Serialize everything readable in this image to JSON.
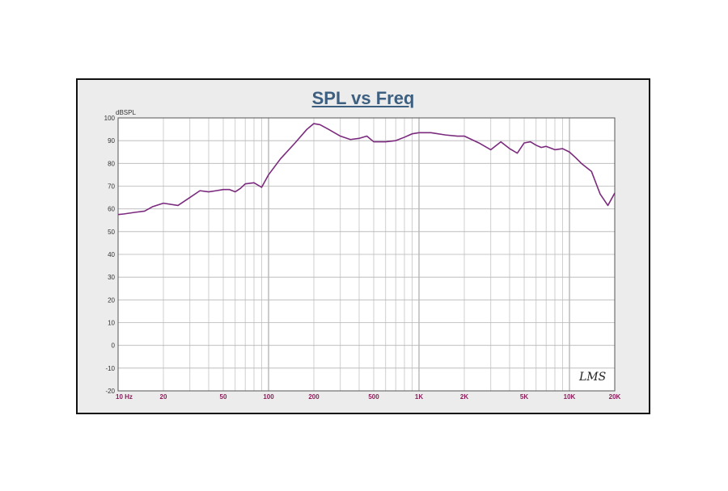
{
  "chart_data": {
    "type": "line",
    "title": "SPL vs Freq",
    "ylabel": "dBSPL",
    "xlabel": "",
    "x_scale": "log",
    "xlim": [
      10,
      20000
    ],
    "ylim": [
      -20,
      100
    ],
    "y_ticks": [
      100,
      90,
      80,
      70,
      60,
      50,
      40,
      30,
      20,
      10,
      0,
      -10,
      -20
    ],
    "x_ticks": [
      {
        "value": 10,
        "label": "10  Hz"
      },
      {
        "value": 20,
        "label": "20"
      },
      {
        "value": 50,
        "label": "50"
      },
      {
        "value": 100,
        "label": "100"
      },
      {
        "value": 200,
        "label": "200"
      },
      {
        "value": 500,
        "label": "500"
      },
      {
        "value": 1000,
        "label": "1K"
      },
      {
        "value": 2000,
        "label": "2K"
      },
      {
        "value": 5000,
        "label": "5K"
      },
      {
        "value": 10000,
        "label": "10K"
      },
      {
        "value": 20000,
        "label": "20K"
      }
    ],
    "grid": true,
    "series": [
      {
        "name": "",
        "color": "#7b2a7e",
        "x": [
          10,
          11,
          13,
          15,
          17,
          20,
          25,
          30,
          35,
          40,
          45,
          50,
          55,
          60,
          65,
          70,
          80,
          90,
          100,
          120,
          150,
          180,
          200,
          220,
          250,
          300,
          350,
          400,
          450,
          500,
          550,
          600,
          700,
          800,
          900,
          1000,
          1100,
          1200,
          1500,
          1800,
          2000,
          2500,
          3000,
          3500,
          4000,
          4500,
          5000,
          5500,
          6000,
          6500,
          7000,
          8000,
          9000,
          10000,
          11000,
          12000,
          14000,
          16000,
          18000,
          20000
        ],
        "y": [
          57.5,
          57.8,
          58.5,
          59,
          61,
          62.5,
          61.5,
          65,
          68,
          67.5,
          68,
          68.5,
          68.5,
          67.5,
          69,
          71,
          71.5,
          69.5,
          75,
          82,
          89,
          95,
          97.5,
          97,
          95,
          92,
          90.5,
          91,
          92,
          89.5,
          89.5,
          89.5,
          90,
          91.5,
          93,
          93.5,
          93.5,
          93.5,
          92.5,
          92,
          92,
          89,
          86,
          89.5,
          86.5,
          84.5,
          89,
          89.5,
          88,
          87,
          87.5,
          86,
          86.5,
          85,
          82.5,
          80,
          76.5,
          66.5,
          61.5,
          67
        ]
      }
    ]
  }
}
